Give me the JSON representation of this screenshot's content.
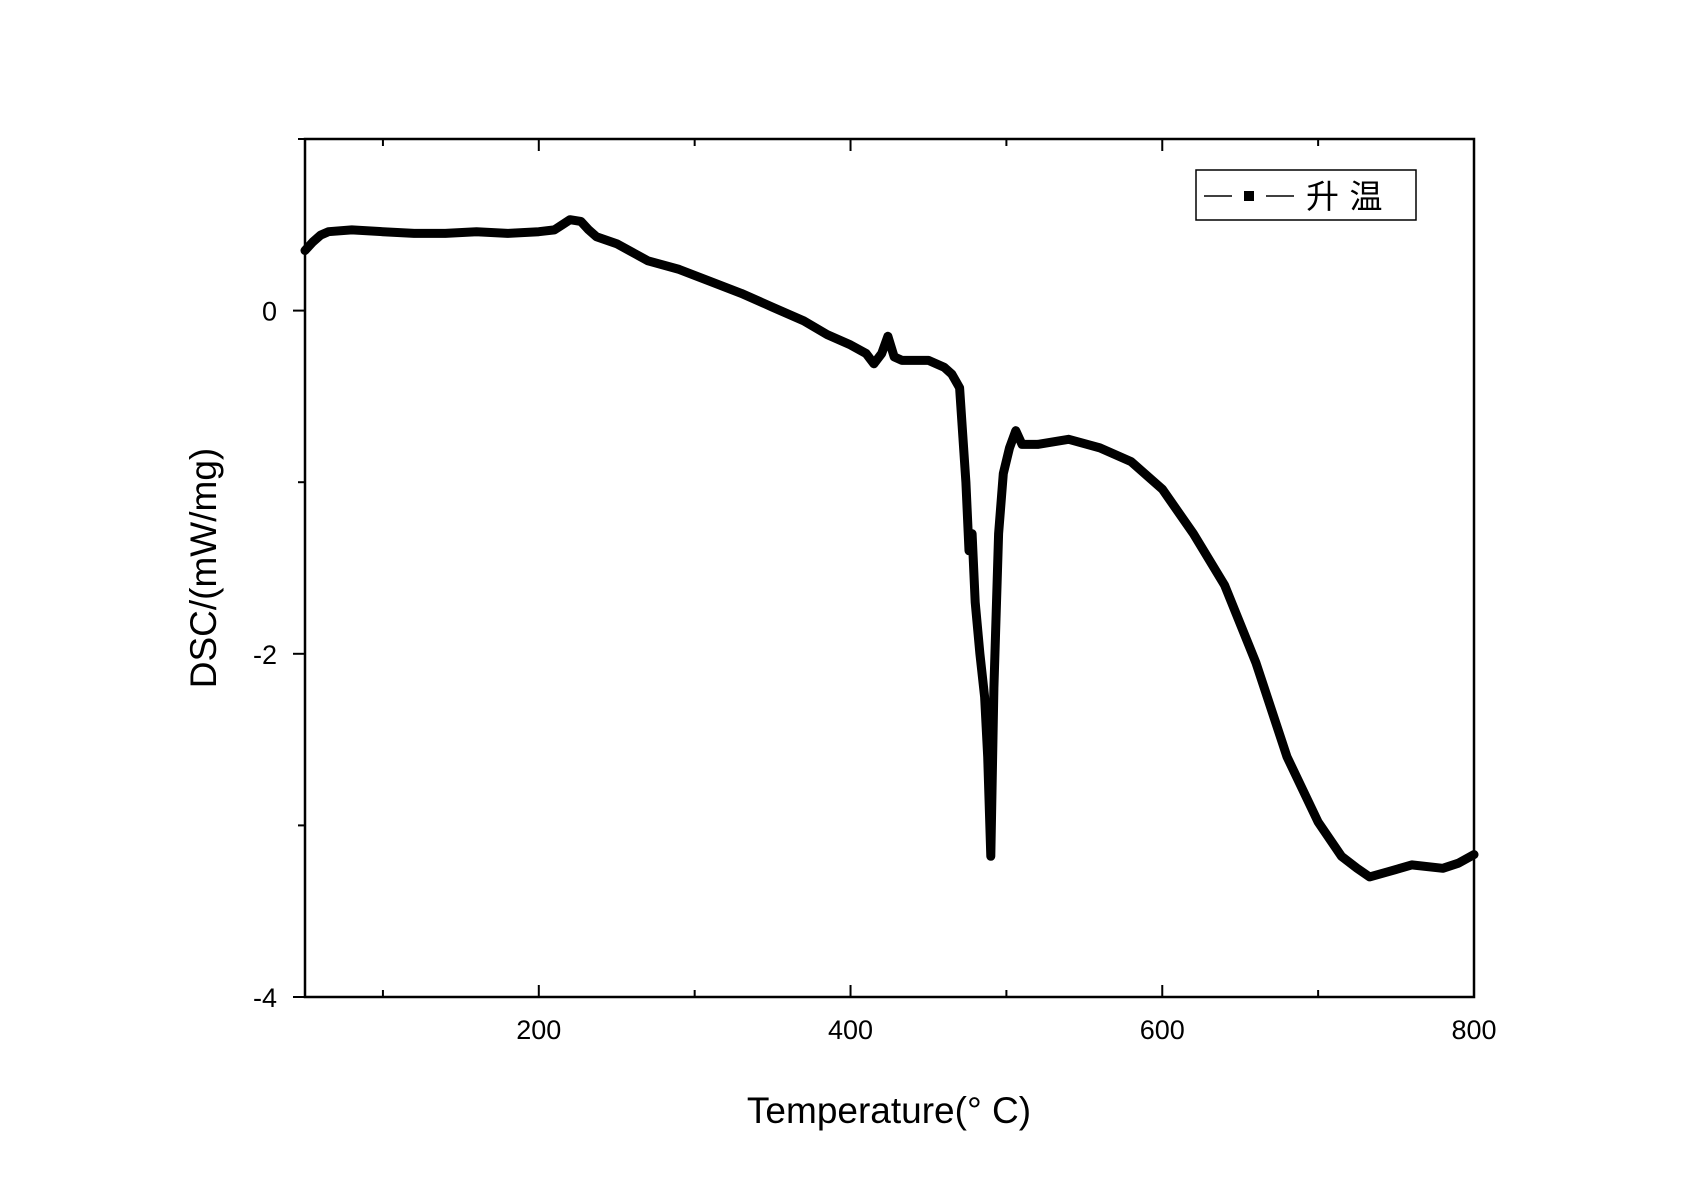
{
  "chart_data": {
    "type": "line",
    "title": "",
    "xlabel": "Temperature(° C)",
    "ylabel": "DSC/(mW/mg)",
    "xlim": [
      50,
      800
    ],
    "ylim": [
      -4,
      1
    ],
    "x_ticks": [
      "200",
      "400",
      "600",
      "800"
    ],
    "y_ticks": [
      "0",
      "-2",
      "-4"
    ],
    "legend": {
      "position": "top-right",
      "entries": [
        "升 温"
      ]
    },
    "grid": false,
    "series": [
      {
        "name": "升 温",
        "color": "#000000",
        "marker": "square",
        "points": [
          [
            50,
            0.35
          ],
          [
            55,
            0.4
          ],
          [
            60,
            0.44
          ],
          [
            65,
            0.46
          ],
          [
            80,
            0.47
          ],
          [
            100,
            0.46
          ],
          [
            120,
            0.45
          ],
          [
            140,
            0.45
          ],
          [
            160,
            0.46
          ],
          [
            180,
            0.45
          ],
          [
            200,
            0.46
          ],
          [
            210,
            0.47
          ],
          [
            215,
            0.5
          ],
          [
            220,
            0.53
          ],
          [
            227,
            0.52
          ],
          [
            232,
            0.47
          ],
          [
            237,
            0.43
          ],
          [
            250,
            0.39
          ],
          [
            270,
            0.29
          ],
          [
            290,
            0.24
          ],
          [
            310,
            0.17
          ],
          [
            330,
            0.1
          ],
          [
            350,
            0.02
          ],
          [
            370,
            -0.06
          ],
          [
            385,
            -0.14
          ],
          [
            400,
            -0.2
          ],
          [
            410,
            -0.25
          ],
          [
            415,
            -0.31
          ],
          [
            420,
            -0.25
          ],
          [
            424,
            -0.15
          ],
          [
            428,
            -0.27
          ],
          [
            433,
            -0.29
          ],
          [
            450,
            -0.29
          ],
          [
            460,
            -0.33
          ],
          [
            465,
            -0.37
          ],
          [
            470,
            -0.45
          ],
          [
            474,
            -1.0
          ],
          [
            476,
            -1.4
          ],
          [
            478,
            -1.3
          ],
          [
            480,
            -1.7
          ],
          [
            483,
            -2.0
          ],
          [
            486,
            -2.25
          ],
          [
            488,
            -2.6
          ],
          [
            490,
            -3.18
          ],
          [
            492,
            -2.2
          ],
          [
            495,
            -1.3
          ],
          [
            498,
            -0.95
          ],
          [
            502,
            -0.8
          ],
          [
            506,
            -0.7
          ],
          [
            510,
            -0.78
          ],
          [
            520,
            -0.78
          ],
          [
            540,
            -0.75
          ],
          [
            560,
            -0.8
          ],
          [
            580,
            -0.88
          ],
          [
            600,
            -1.04
          ],
          [
            620,
            -1.3
          ],
          [
            640,
            -1.6
          ],
          [
            660,
            -2.05
          ],
          [
            680,
            -2.6
          ],
          [
            700,
            -2.98
          ],
          [
            715,
            -3.18
          ],
          [
            725,
            -3.25
          ],
          [
            733,
            -3.3
          ],
          [
            745,
            -3.27
          ],
          [
            760,
            -3.23
          ],
          [
            780,
            -3.25
          ],
          [
            790,
            -3.22
          ],
          [
            800,
            -3.17
          ]
        ]
      }
    ]
  }
}
